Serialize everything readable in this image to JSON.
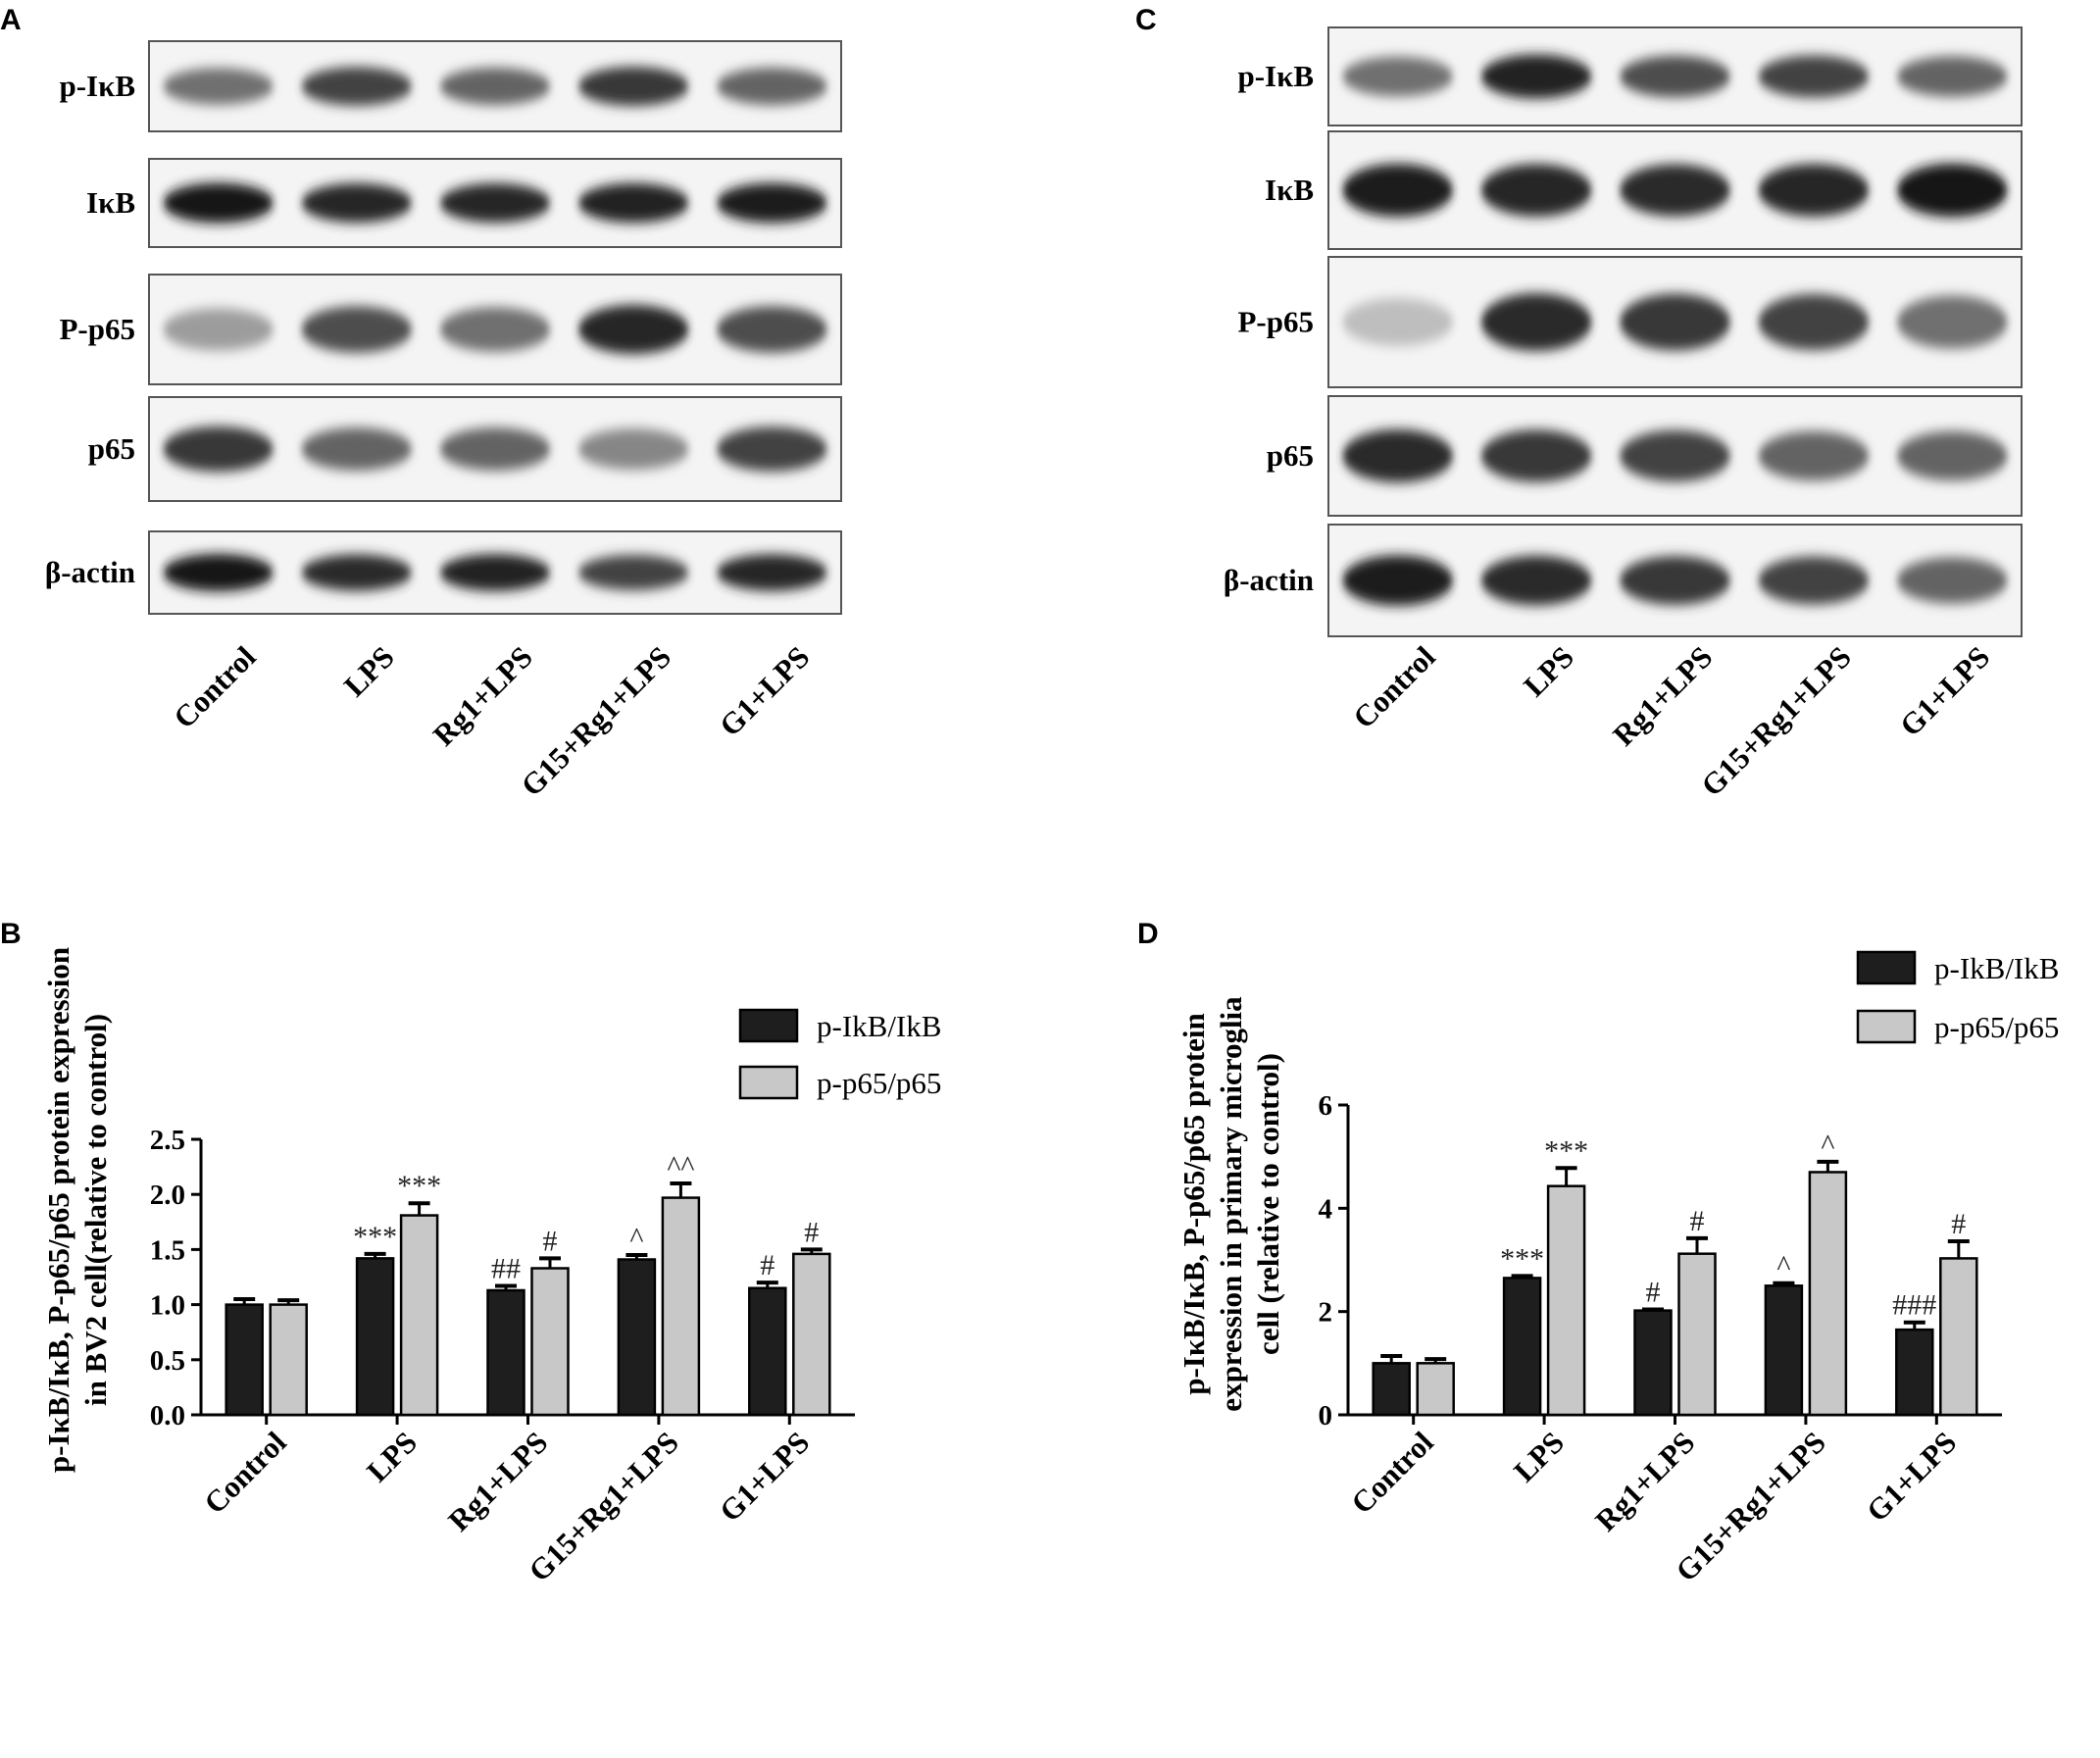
{
  "panels": [
    {
      "letter": "A",
      "blot_labels": [
        "p-IκB",
        "IκB",
        "P-p65",
        "p65",
        "β-actin"
      ],
      "lane_labels": [
        "Control",
        "LPS",
        "Rg1+LPS",
        "G15+Rg1+LPS",
        "G1+LPS"
      ],
      "band_intensity": [
        [
          0.55,
          0.75,
          0.6,
          0.8,
          0.6
        ],
        [
          0.95,
          0.88,
          0.88,
          0.9,
          0.92
        ],
        [
          0.35,
          0.7,
          0.55,
          0.88,
          0.7
        ],
        [
          0.8,
          0.6,
          0.6,
          0.45,
          0.75
        ],
        [
          0.95,
          0.85,
          0.9,
          0.75,
          0.88
        ]
      ]
    },
    {
      "letter": "C",
      "blot_labels": [
        "p-IκB",
        "IκB",
        "P-p65",
        "p65",
        "β-actin"
      ],
      "lane_labels": [
        "Control",
        "LPS",
        "Rg1+LPS",
        "G15+Rg1+LPS",
        "G1+LPS"
      ],
      "band_intensity": [
        [
          0.55,
          0.9,
          0.7,
          0.75,
          0.6
        ],
        [
          0.92,
          0.88,
          0.85,
          0.88,
          0.95
        ],
        [
          0.2,
          0.85,
          0.8,
          0.75,
          0.55
        ],
        [
          0.85,
          0.8,
          0.75,
          0.6,
          0.6
        ],
        [
          0.92,
          0.85,
          0.8,
          0.75,
          0.6
        ]
      ]
    },
    {
      "letter": "B"
    },
    {
      "letter": "D"
    }
  ],
  "chart_data": [
    {
      "type": "bar",
      "panel": "B",
      "categories": [
        "Control",
        "LPS",
        "Rg1+LPS",
        "G15+Rg1+LPS",
        "G1+LPS"
      ],
      "series": [
        {
          "name": "p-IkB/IkB",
          "values": [
            1.0,
            1.42,
            1.13,
            1.41,
            1.15
          ],
          "errors": [
            0.05,
            0.04,
            0.04,
            0.04,
            0.05
          ],
          "color": "#1e1e1e"
        },
        {
          "name": "p-p65/p65",
          "values": [
            1.0,
            1.81,
            1.33,
            1.97,
            1.46
          ],
          "errors": [
            0.04,
            0.11,
            0.09,
            0.13,
            0.04
          ],
          "color": "#c8c8c8"
        }
      ],
      "annotations": [
        [
          "",
          "***",
          "##",
          "^",
          "#"
        ],
        [
          "",
          "***",
          "#",
          "^^",
          "#"
        ]
      ],
      "ylabel_lines": [
        "p-IκB/IκB, P-p65/p65 protein expression",
        "in BV2 cell(relative to control)"
      ],
      "ylim": [
        0,
        2.5
      ],
      "yticks": [
        "0.0",
        "0.5",
        "1.0",
        "1.5",
        "2.0",
        "2.5"
      ],
      "legend": "top-right"
    },
    {
      "type": "bar",
      "panel": "D",
      "categories": [
        "Control",
        "LPS",
        "Rg1+LPS",
        "G15+Rg1+LPS",
        "G1+LPS"
      ],
      "series": [
        {
          "name": "p-IkB/IkB",
          "values": [
            1.0,
            2.65,
            2.02,
            2.5,
            1.65
          ],
          "errors": [
            0.14,
            0.04,
            0.02,
            0.05,
            0.14
          ],
          "color": "#1e1e1e"
        },
        {
          "name": "p-p65/p65",
          "values": [
            1.0,
            4.43,
            3.12,
            4.7,
            3.03
          ],
          "errors": [
            0.08,
            0.35,
            0.3,
            0.2,
            0.33
          ],
          "color": "#c8c8c8"
        }
      ],
      "annotations": [
        [
          "",
          "***",
          "#",
          "^",
          "###"
        ],
        [
          "",
          "***",
          "#",
          "^",
          "#"
        ]
      ],
      "ylabel_lines": [
        "p-IκB/IκB, P-p65/p65 protein",
        "expression in primary microglia",
        "cell (relative to control)"
      ],
      "ylim": [
        0,
        6
      ],
      "yticks": [
        "0",
        "2",
        "4",
        "6"
      ],
      "legend": "top-right"
    }
  ]
}
